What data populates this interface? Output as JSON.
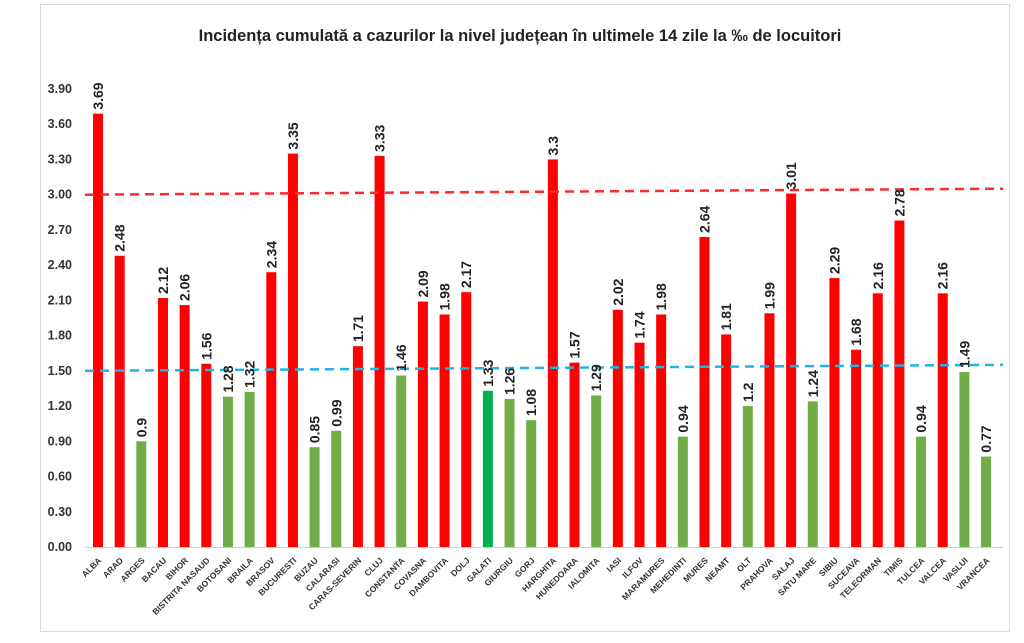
{
  "chart_data": {
    "type": "bar",
    "title": "Incidența cumulată a cazurilor la nivel județean în ultimele 14 zile la ‰ de locuitori",
    "xlabel": "",
    "ylabel": "",
    "ylim": [
      0,
      3.9
    ],
    "yticks": [
      "0.00",
      "0.30",
      "0.60",
      "0.90",
      "1.20",
      "1.50",
      "1.80",
      "2.10",
      "2.40",
      "2.70",
      "3.00",
      "3.30",
      "3.60",
      "3.90"
    ],
    "grid": false,
    "categories": [
      "ALBA",
      "ARAD",
      "ARGES",
      "BACAU",
      "BIHOR",
      "BISTRITA NASAUD",
      "BOTOSANI",
      "BRAILA",
      "BRASOV",
      "BUCURESTI",
      "BUZAU",
      "CALARASI",
      "CARAS-SEVERIN",
      "CLUJ",
      "CONSTANTA",
      "COVASNA",
      "DAMBOVITA",
      "DOLJ",
      "GALATI",
      "GIURGIU",
      "GORJ",
      "HARGHITA",
      "HUNEDOARA",
      "IALOMITA",
      "IASI",
      "ILFOV",
      "MARAMURES",
      "MEHEDINTI",
      "MURES",
      "NEAMT",
      "OLT",
      "PRAHOVA",
      "SALAJ",
      "SATU MARE",
      "SIBIU",
      "SUCEAVA",
      "TELEORMAN",
      "TIMIS",
      "TULCEA",
      "VALCEA",
      "VASLUI",
      "VRANCEA"
    ],
    "values": [
      3.69,
      2.48,
      0.9,
      2.12,
      2.06,
      1.56,
      1.28,
      1.32,
      2.34,
      3.35,
      0.85,
      0.99,
      1.71,
      3.33,
      1.46,
      2.09,
      1.98,
      2.17,
      1.33,
      1.26,
      1.08,
      3.3,
      1.57,
      1.29,
      2.02,
      1.74,
      1.98,
      0.94,
      2.64,
      1.81,
      1.2,
      1.99,
      3.01,
      1.24,
      2.29,
      1.68,
      2.16,
      2.78,
      0.94,
      2.16,
      1.49,
      0.77
    ],
    "data_labels": [
      "3.69",
      "2.48",
      "0.9",
      "2.12",
      "2.06",
      "1.56",
      "1.28",
      "1.32",
      "2.34",
      "3.35",
      "0.85",
      "0.99",
      "1.71",
      "3.33",
      "1.46",
      "2.09",
      "1.98",
      "2.17",
      "1.33",
      "1.26",
      "1.08",
      "3.3",
      "1.57",
      "1.29",
      "2.02",
      "1.74",
      "1.98",
      "0.94",
      "2.64",
      "1.81",
      "1.2",
      "1.99",
      "3.01",
      "1.24",
      "2.29",
      "1.68",
      "2.16",
      "2.78",
      "0.94",
      "2.16",
      "1.49",
      "0.77"
    ],
    "highlight_category": "GALATI",
    "thresholds": [
      {
        "value": 3.0,
        "color": "#ff2a2a",
        "style": "dashed"
      },
      {
        "value": 1.5,
        "color": "#1fb4e6",
        "style": "dashed"
      }
    ],
    "colors": {
      "above": "#ff0000",
      "below": "#70ad47",
      "highlight": "#00b050"
    }
  }
}
